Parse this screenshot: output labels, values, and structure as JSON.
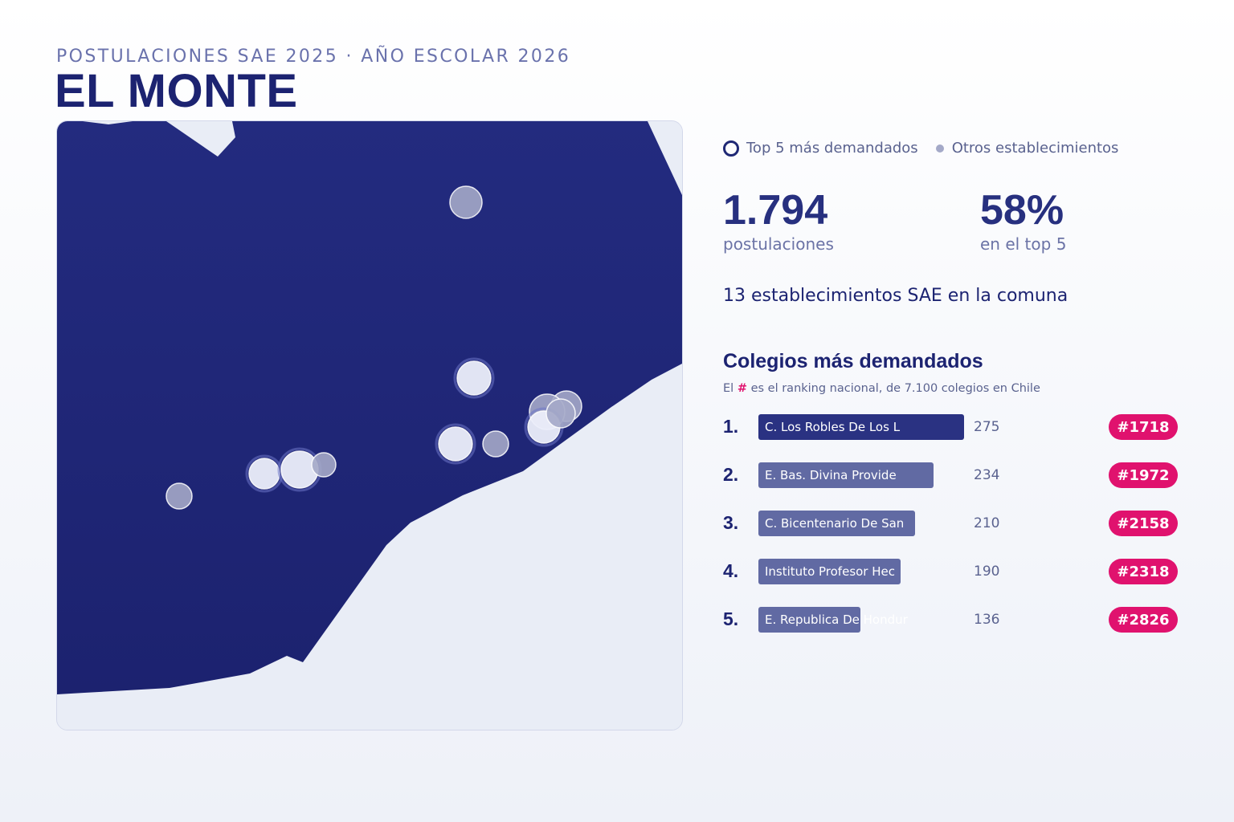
{
  "header": {
    "eyebrow": "POSTULACIONES SAE 2025 · AÑO ESCOLAR 2026",
    "title": "EL MONTE"
  },
  "legend": {
    "top5_label": "Top 5 más demandados",
    "others_label": "Otros establecimientos"
  },
  "stats": [
    {
      "value": "1.794",
      "label": "postulaciones"
    },
    {
      "value": "58%",
      "label": "en el top 5"
    }
  ],
  "summary": "13 establecimientos SAE en la comuna",
  "ranking": {
    "title": "Colegios más demandados",
    "note_prefix": "El",
    "note_hash": "#",
    "note_suffix": "es el ranking nacional, de 7.100 colegios en Chile",
    "max_count": 275,
    "items": [
      {
        "rank": "1.",
        "name": "C. Los Robles De Los L",
        "count": 275,
        "badge": "#1718"
      },
      {
        "rank": "2.",
        "name": "E. Bas. Divina Provide",
        "count": 234,
        "badge": "#1972"
      },
      {
        "rank": "3.",
        "name": "C. Bicentenario De San",
        "count": 210,
        "badge": "#2158"
      },
      {
        "rank": "4.",
        "name": "Instituto Profesor Hec",
        "count": 190,
        "badge": "#2318"
      },
      {
        "rank": "5.",
        "name": "E. Republica De Hondur",
        "count": 136,
        "badge": "#2826"
      }
    ]
  },
  "colors": {
    "land": "#1f2575",
    "background": "#e9edf6",
    "top5_marker": "#eceefa",
    "other_marker": "#a4a9c8",
    "badge": "#e0126e",
    "bar_first": "#2a3282",
    "bar_other": "#616aa3"
  },
  "map_markers": [
    {
      "kind": "other"
    },
    {
      "kind": "top5"
    },
    {
      "kind": "top5"
    },
    {
      "kind": "other"
    },
    {
      "kind": "other"
    },
    {
      "kind": "other"
    },
    {
      "kind": "top5"
    },
    {
      "kind": "other"
    },
    {
      "kind": "top5"
    },
    {
      "kind": "top5"
    },
    {
      "kind": "other"
    },
    {
      "kind": "other"
    },
    {
      "kind": "other"
    }
  ]
}
